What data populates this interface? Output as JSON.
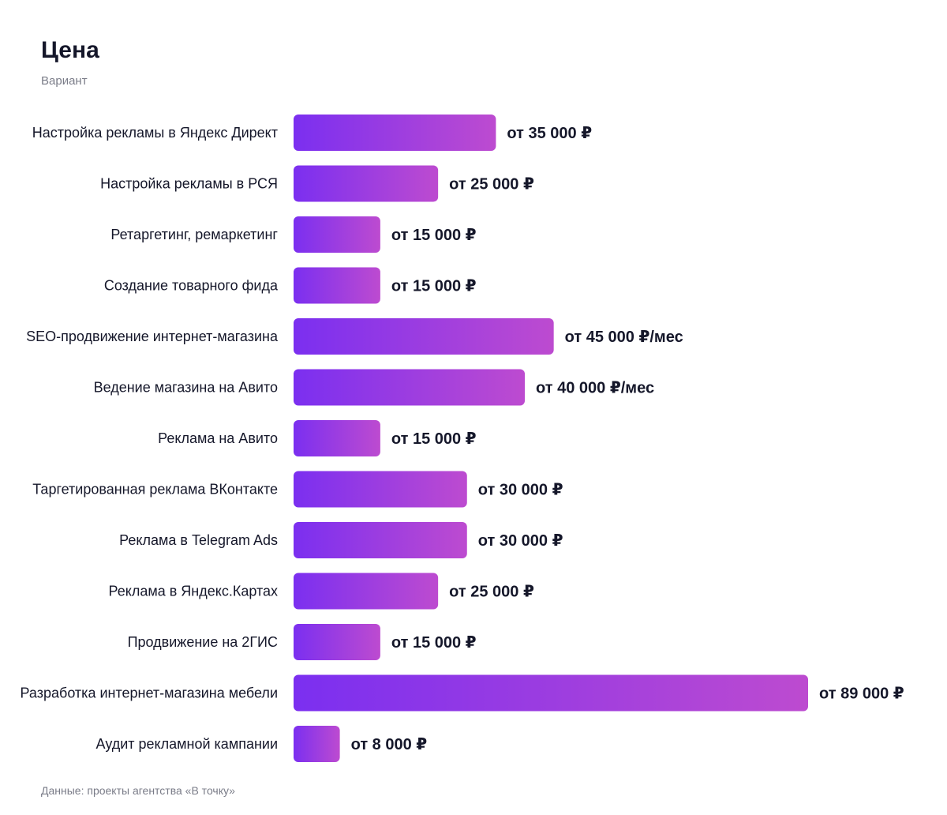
{
  "chart_data": {
    "type": "bar",
    "orientation": "horizontal",
    "title": "Цена",
    "subtitle": "Вариант",
    "categories": [
      "Настройка рекламы в Яндекс Директ",
      "Настройка рекламы в РСЯ",
      "Ретаргетинг, ремаркетинг",
      "Создание товарного фида",
      "SEO-продвижение интернет-магазина",
      "Ведение магазина на Авито",
      "Реклама на Авито",
      "Таргетированная реклама ВКонтакте",
      "Реклама в Telegram Ads",
      "Реклама в Яндекс.Картах",
      "Продвижение на 2ГИС",
      "Разработка интернет-магазина мебели",
      "Аудит рекламной кампании"
    ],
    "values": [
      35000,
      25000,
      15000,
      15000,
      45000,
      40000,
      15000,
      30000,
      30000,
      25000,
      15000,
      89000,
      8000
    ],
    "value_labels": [
      "от 35 000 ₽",
      "от 25 000 ₽",
      "от 15 000 ₽",
      "от 15 000 ₽",
      "от 45 000 ₽/мес",
      "от 40 000 ₽/мес",
      "от 15 000 ₽",
      "от 30 000 ₽",
      "от 30 000 ₽",
      "от 25 000 ₽",
      "от 15 000 ₽",
      "от 89 000 ₽",
      "от 8 000 ₽"
    ],
    "xlim": [
      0,
      89000
    ],
    "grid": false,
    "legend": "none",
    "bar_gradient": [
      "#7b2ff0",
      "#bd4bd0"
    ],
    "source": "Данные: проекты агентства «В точку»"
  }
}
